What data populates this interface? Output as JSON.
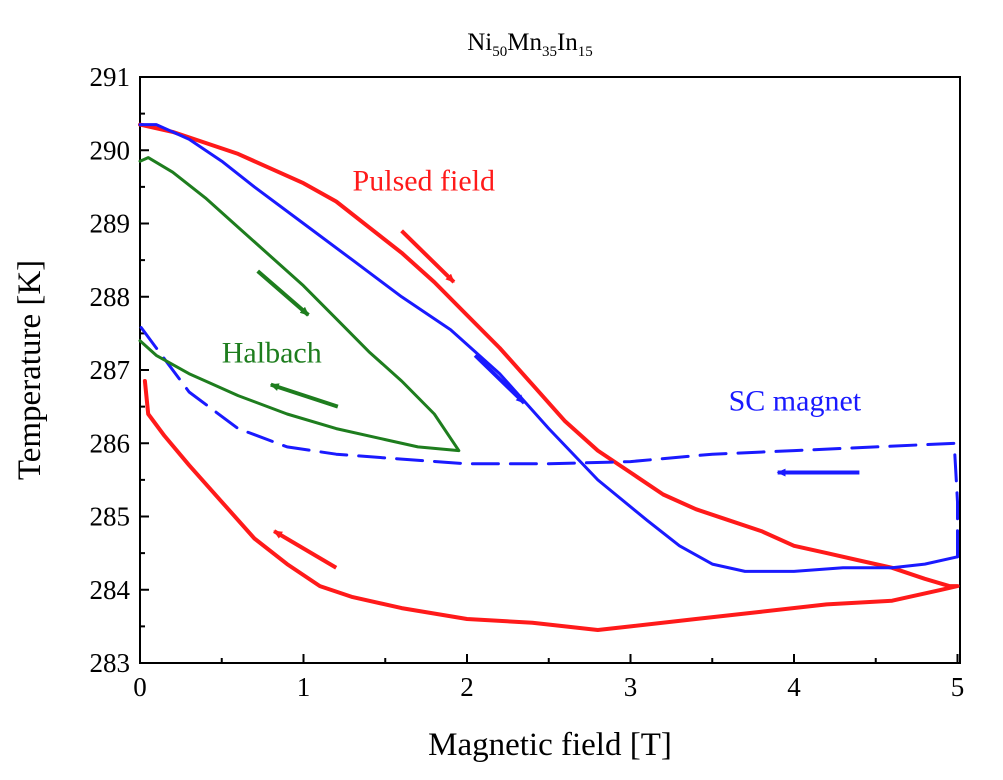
{
  "chart_data": {
    "type": "line",
    "title": {
      "parts": [
        {
          "text": "Ni",
          "sub": false
        },
        {
          "text": "50",
          "sub": true
        },
        {
          "text": "Mn",
          "sub": false
        },
        {
          "text": "35",
          "sub": true
        },
        {
          "text": "In",
          "sub": false
        },
        {
          "text": "15",
          "sub": true
        }
      ]
    },
    "xlabel": "Magnetic field [T]",
    "ylabel": "Temperature [K]",
    "xlim": [
      0,
      5.1
    ],
    "ylim": [
      283,
      291
    ],
    "xticks": [
      0,
      1,
      2,
      3,
      4,
      5
    ],
    "yticks": [
      283,
      284,
      285,
      286,
      287,
      288,
      289,
      290,
      291
    ],
    "grid": false,
    "colors": {
      "pulsed": "#ff1a1a",
      "sc": "#1a1aff",
      "halbach": "#1e7d1e"
    },
    "series": [
      {
        "key": "pulsed",
        "style": "solid",
        "points": [
          [
            0,
            290.35
          ],
          [
            0.2,
            290.25
          ],
          [
            0.4,
            290.1
          ],
          [
            0.6,
            289.95
          ],
          [
            0.8,
            289.75
          ],
          [
            1.0,
            289.55
          ],
          [
            1.2,
            289.3
          ],
          [
            1.4,
            288.95
          ],
          [
            1.6,
            288.6
          ],
          [
            1.8,
            288.2
          ],
          [
            2.0,
            287.75
          ],
          [
            2.2,
            287.3
          ],
          [
            2.4,
            286.8
          ],
          [
            2.6,
            286.3
          ],
          [
            2.8,
            285.9
          ],
          [
            3.0,
            285.6
          ],
          [
            3.2,
            285.3
          ],
          [
            3.4,
            285.1
          ],
          [
            3.6,
            284.95
          ],
          [
            3.8,
            284.8
          ],
          [
            4.0,
            284.6
          ],
          [
            4.2,
            284.5
          ],
          [
            4.4,
            284.4
          ],
          [
            4.6,
            284.3
          ],
          [
            4.8,
            284.15
          ],
          [
            4.95,
            284.05
          ],
          [
            5.0,
            284.05
          ],
          [
            4.9,
            284.0
          ],
          [
            4.6,
            283.85
          ],
          [
            4.2,
            283.8
          ],
          [
            3.8,
            283.7
          ],
          [
            3.4,
            283.6
          ],
          [
            3.0,
            283.5
          ],
          [
            2.8,
            283.45
          ],
          [
            2.4,
            283.55
          ],
          [
            2.0,
            283.6
          ],
          [
            1.6,
            283.75
          ],
          [
            1.3,
            283.9
          ],
          [
            1.1,
            284.05
          ],
          [
            0.9,
            284.35
          ],
          [
            0.7,
            284.7
          ],
          [
            0.5,
            285.2
          ],
          [
            0.3,
            285.7
          ],
          [
            0.15,
            286.1
          ],
          [
            0.05,
            286.4
          ],
          [
            0.03,
            286.85
          ]
        ]
      },
      {
        "key": "sc_up",
        "style": "solid",
        "points": [
          [
            0,
            290.35
          ],
          [
            0.1,
            290.35
          ],
          [
            0.3,
            290.15
          ],
          [
            0.5,
            289.85
          ],
          [
            0.7,
            289.5
          ],
          [
            1.0,
            289.0
          ],
          [
            1.3,
            288.5
          ],
          [
            1.6,
            288.0
          ],
          [
            1.9,
            287.55
          ],
          [
            2.2,
            286.95
          ],
          [
            2.5,
            286.2
          ],
          [
            2.8,
            285.5
          ],
          [
            3.1,
            284.95
          ],
          [
            3.3,
            284.6
          ],
          [
            3.5,
            284.35
          ],
          [
            3.7,
            284.25
          ],
          [
            4.0,
            284.25
          ],
          [
            4.3,
            284.3
          ],
          [
            4.6,
            284.3
          ],
          [
            4.8,
            284.35
          ],
          [
            5.0,
            284.45
          ]
        ]
      },
      {
        "key": "sc_down",
        "style": "dashed",
        "points": [
          [
            5.0,
            284.45
          ],
          [
            5.0,
            285.2
          ],
          [
            4.98,
            286.0
          ],
          [
            4.5,
            285.95
          ],
          [
            4.0,
            285.9
          ],
          [
            3.5,
            285.85
          ],
          [
            3.0,
            285.75
          ],
          [
            2.5,
            285.72
          ],
          [
            2.0,
            285.72
          ],
          [
            1.5,
            285.8
          ],
          [
            1.2,
            285.85
          ],
          [
            0.9,
            285.95
          ],
          [
            0.6,
            286.2
          ],
          [
            0.3,
            286.7
          ],
          [
            0.1,
            287.3
          ],
          [
            0,
            287.6
          ]
        ]
      },
      {
        "key": "halbach",
        "style": "solid",
        "points": [
          [
            0,
            289.85
          ],
          [
            0.05,
            289.9
          ],
          [
            0.2,
            289.7
          ],
          [
            0.4,
            289.35
          ],
          [
            0.6,
            288.95
          ],
          [
            0.8,
            288.55
          ],
          [
            1.0,
            288.15
          ],
          [
            1.2,
            287.7
          ],
          [
            1.4,
            287.25
          ],
          [
            1.6,
            286.85
          ],
          [
            1.8,
            286.4
          ],
          [
            1.95,
            285.9
          ],
          [
            1.7,
            285.95
          ],
          [
            1.5,
            286.05
          ],
          [
            1.2,
            286.2
          ],
          [
            0.9,
            286.4
          ],
          [
            0.6,
            286.65
          ],
          [
            0.3,
            286.95
          ],
          [
            0.1,
            287.2
          ],
          [
            0,
            287.4
          ]
        ]
      }
    ],
    "annotations": [
      {
        "text": "Pulsed field",
        "key": "pulsed",
        "x": 1.3,
        "y": 289.45
      },
      {
        "text": "SC magnet",
        "key": "sc",
        "x": 3.6,
        "y": 286.45
      },
      {
        "text": "Halbach",
        "key": "halbach",
        "x": 0.5,
        "y": 287.1
      }
    ],
    "arrows": [
      {
        "key": "pulsed",
        "from": [
          1.6,
          288.9
        ],
        "to": [
          1.92,
          288.2
        ]
      },
      {
        "key": "pulsed",
        "from": [
          1.2,
          284.3
        ],
        "to": [
          0.82,
          284.8
        ]
      },
      {
        "key": "sc",
        "from": [
          2.05,
          287.2
        ],
        "to": [
          2.35,
          286.55
        ]
      },
      {
        "key": "sc",
        "from": [
          4.4,
          285.6
        ],
        "to": [
          3.9,
          285.6
        ]
      },
      {
        "key": "halbach",
        "from": [
          0.72,
          288.35
        ],
        "to": [
          1.03,
          287.75
        ]
      },
      {
        "key": "halbach",
        "from": [
          1.21,
          286.5
        ],
        "to": [
          0.8,
          286.8
        ]
      }
    ]
  }
}
